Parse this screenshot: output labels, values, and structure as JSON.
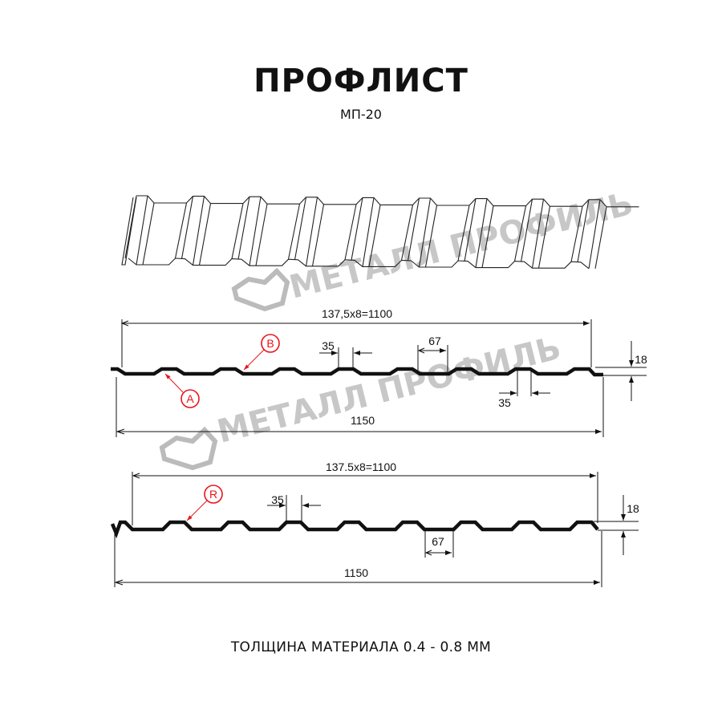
{
  "header": {
    "title": "ПРОФЛИСТ",
    "subtitle": "МП-20"
  },
  "footer": {
    "text": "ТОЛЩИНА МАТЕРИАЛА 0.4 - 0.8 ММ"
  },
  "watermark": {
    "text": "МЕТАЛЛ ПРОФИЛЬ",
    "color": "#9a9a9a"
  },
  "profile_a": {
    "span_label": "137,5x8=1100",
    "total_label": "1150",
    "top_width_label": "35",
    "bottom_width_label": "67",
    "bottom_gap_label": "35",
    "height_label": "18",
    "markers": [
      "A",
      "B"
    ]
  },
  "profile_r": {
    "span_label": "137.5x8=1100",
    "total_label": "1150",
    "top_width_label": "35",
    "bottom_width_label": "67",
    "height_label": "18",
    "markers": [
      "R"
    ]
  },
  "colors": {
    "marker": "#e8141b",
    "line": "#111111"
  }
}
